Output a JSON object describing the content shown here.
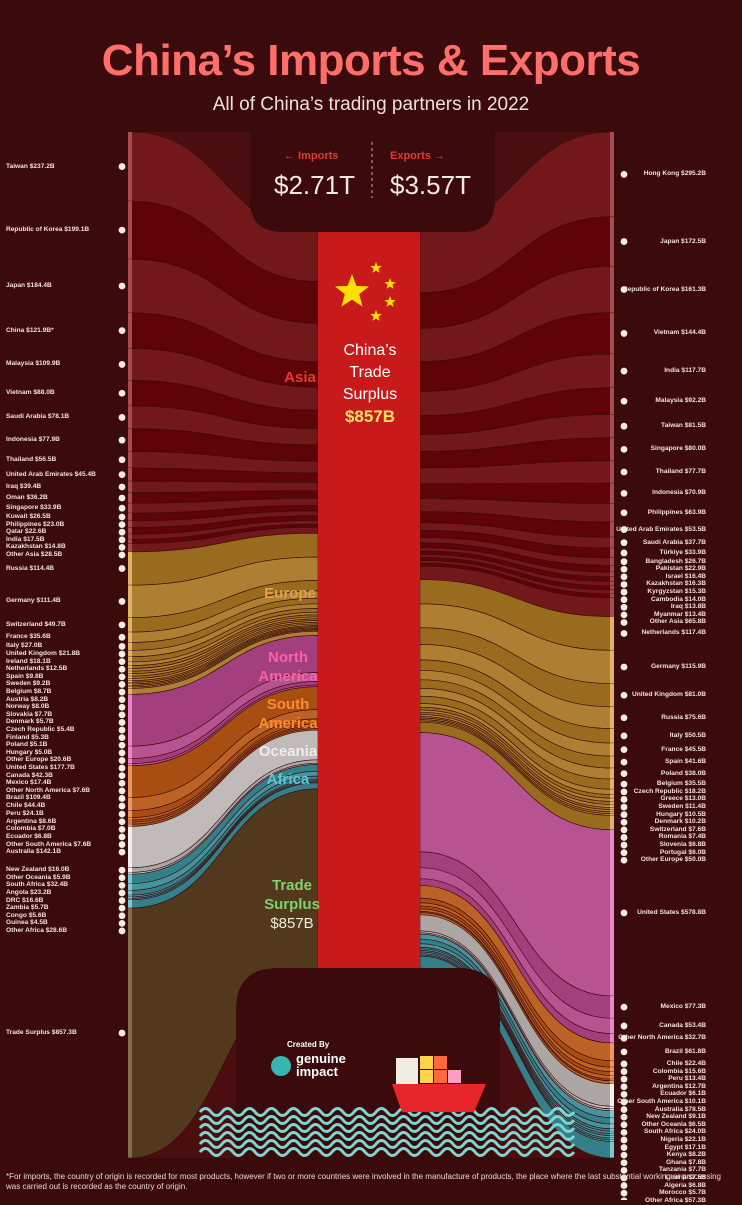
{
  "header": {
    "title": "China’s Imports & Exports",
    "subtitle": "All of China’s trading partners in 2022"
  },
  "totals": {
    "imports_label": "← Imports",
    "imports_value": "$2.71T",
    "exports_label": "Exports →",
    "exports_value": "$3.57T"
  },
  "center": {
    "line1": "China’s",
    "line2": "Trade",
    "line3": "Surplus",
    "value": "$857B"
  },
  "regions": {
    "asia": "Asia",
    "europe": "Europe",
    "north_america_1": "North",
    "north_america_2": "America",
    "south_america_1": "South",
    "south_america_2": "America",
    "oceania": "Oceania",
    "africa": "Africa",
    "trade_surplus_1": "Trade",
    "trade_surplus_2": "Surplus",
    "trade_surplus_value": "$857B"
  },
  "colors": {
    "background": "#3a0a0c",
    "asia": "#6a0f12",
    "europe": "#a4772a",
    "north_america": "#b04b8a",
    "south_america": "#b45a1f",
    "oceania": "#b8b2b0",
    "africa": "#3f8c96",
    "trade_surplus": "#4a3015",
    "china_bar": "#c81a1a",
    "title": "#ff6f6a"
  },
  "branding": {
    "created_by": "Created By",
    "brand_line1": "genuine",
    "brand_line2": "impact",
    "logo_icon": "genuine-impact-logo"
  },
  "footnote": "*For imports, the country of origin is recorded for most products, however if two or more countries were involved in the manufacture of products, the place where the last substantial working or processing was carried out is recorded as the country of origin.",
  "chart_data": {
    "type": "sankey",
    "title": "China’s Imports & Exports",
    "subtitle": "All of China’s trading partners in 2022",
    "imports_total": "$2.71T",
    "exports_total": "$3.57T",
    "trade_surplus": "$857B",
    "imports": [
      {
        "label": "Taiwan $237.2B",
        "region": "asia",
        "value": 237.2
      },
      {
        "label": "Republic of Korea $199.1B",
        "region": "asia",
        "value": 199.1
      },
      {
        "label": "Japan $184.4B",
        "region": "asia",
        "value": 184.4
      },
      {
        "label": "China $121.9B*",
        "region": "asia",
        "value": 121.9
      },
      {
        "label": "Malaysia $109.9B",
        "region": "asia",
        "value": 109.9
      },
      {
        "label": "Vietnam $88.0B",
        "region": "asia",
        "value": 88.0
      },
      {
        "label": "Saudi Arabia $78.1B",
        "region": "asia",
        "value": 78.1
      },
      {
        "label": "Indonesia $77.9B",
        "region": "asia",
        "value": 77.9
      },
      {
        "label": "Thailand $56.5B",
        "region": "asia",
        "value": 56.5
      },
      {
        "label": "United Arab Emirates $45.4B",
        "region": "asia",
        "value": 45.4
      },
      {
        "label": "Iraq $39.4B",
        "region": "asia",
        "value": 39.4
      },
      {
        "label": "Oman $36.2B",
        "region": "asia",
        "value": 36.2
      },
      {
        "label": "Singapore $33.9B",
        "region": "asia",
        "value": 33.9
      },
      {
        "label": "Kuwait $26.5B",
        "region": "asia",
        "value": 26.5
      },
      {
        "label": "Philippines $23.0B",
        "region": "asia",
        "value": 23.0
      },
      {
        "label": "Qatar $22.6B",
        "region": "asia",
        "value": 22.6
      },
      {
        "label": "India $17.5B",
        "region": "asia",
        "value": 17.5
      },
      {
        "label": "Kazakhstan $14.8B",
        "region": "asia",
        "value": 14.8
      },
      {
        "label": "Other Asia $28.5B",
        "region": "asia",
        "value": 28.5
      },
      {
        "label": "Russia $114.4B",
        "region": "europe",
        "value": 114.4
      },
      {
        "label": "Germany $111.4B",
        "region": "europe",
        "value": 111.4
      },
      {
        "label": "Switzerland $49.7B",
        "region": "europe",
        "value": 49.7
      },
      {
        "label": "France $35.6B",
        "region": "europe",
        "value": 35.6
      },
      {
        "label": "Italy $27.0B",
        "region": "europe",
        "value": 27.0
      },
      {
        "label": "United Kingdom $21.8B",
        "region": "europe",
        "value": 21.8
      },
      {
        "label": "Ireland $18.1B",
        "region": "europe",
        "value": 18.1
      },
      {
        "label": "Netherlands $12.5B",
        "region": "europe",
        "value": 12.5
      },
      {
        "label": "Spain $9.8B",
        "region": "europe",
        "value": 9.8
      },
      {
        "label": "Sweden $9.2B",
        "region": "europe",
        "value": 9.2
      },
      {
        "label": "Belgium $8.7B",
        "region": "europe",
        "value": 8.7
      },
      {
        "label": "Austria $8.2B",
        "region": "europe",
        "value": 8.2
      },
      {
        "label": "Norway $8.0B",
        "region": "europe",
        "value": 8.0
      },
      {
        "label": "Slovakia $7.7B",
        "region": "europe",
        "value": 7.7
      },
      {
        "label": "Denmark $5.7B",
        "region": "europe",
        "value": 5.7
      },
      {
        "label": "Czech Republic $5.4B",
        "region": "europe",
        "value": 5.4
      },
      {
        "label": "Finland $5.3B",
        "region": "europe",
        "value": 5.3
      },
      {
        "label": "Poland $5.1B",
        "region": "europe",
        "value": 5.1
      },
      {
        "label": "Hungary $5.0B",
        "region": "europe",
        "value": 5.0
      },
      {
        "label": "Other Europe $20.6B",
        "region": "europe",
        "value": 20.6
      },
      {
        "label": "United States $177.7B",
        "region": "north_america",
        "value": 177.7
      },
      {
        "label": "Canada $42.3B",
        "region": "north_america",
        "value": 42.3
      },
      {
        "label": "Mexico $17.4B",
        "region": "north_america",
        "value": 17.4
      },
      {
        "label": "Other North America $7.6B",
        "region": "north_america",
        "value": 7.6
      },
      {
        "label": "Brazil $109.4B",
        "region": "south_america",
        "value": 109.4
      },
      {
        "label": "Chile $44.4B",
        "region": "south_america",
        "value": 44.4
      },
      {
        "label": "Peru $24.1B",
        "region": "south_america",
        "value": 24.1
      },
      {
        "label": "Argentina $8.6B",
        "region": "south_america",
        "value": 8.6
      },
      {
        "label": "Colombia $7.0B",
        "region": "south_america",
        "value": 7.0
      },
      {
        "label": "Ecuador $6.8B",
        "region": "south_america",
        "value": 6.8
      },
      {
        "label": "Other South America $7.6B",
        "region": "south_america",
        "value": 7.6
      },
      {
        "label": "Australia $142.1B",
        "region": "oceania",
        "value": 142.1
      },
      {
        "label": "New Zealand $16.0B",
        "region": "oceania",
        "value": 16.0
      },
      {
        "label": "Other Oceania $5.9B",
        "region": "oceania",
        "value": 5.9
      },
      {
        "label": "South Africa $32.4B",
        "region": "africa",
        "value": 32.4
      },
      {
        "label": "Angola $23.2B",
        "region": "africa",
        "value": 23.2
      },
      {
        "label": "DRC $16.6B",
        "region": "africa",
        "value": 16.6
      },
      {
        "label": "Zambia $5.7B",
        "region": "africa",
        "value": 5.7
      },
      {
        "label": "Congo $5.6B",
        "region": "africa",
        "value": 5.6
      },
      {
        "label": "Guinea $4.5B",
        "region": "africa",
        "value": 4.5
      },
      {
        "label": "Other Africa $28.6B",
        "region": "africa",
        "value": 28.6
      },
      {
        "label": "Trade Surplus $857.3B",
        "region": "trade_surplus",
        "value": 857.3
      }
    ],
    "exports": [
      {
        "label": "Hong Kong $295.2B",
        "region": "asia",
        "value": 295.2
      },
      {
        "label": "Japan $172.5B",
        "region": "asia",
        "value": 172.5
      },
      {
        "label": "Republic of Korea $161.3B",
        "region": "asia",
        "value": 161.3
      },
      {
        "label": "Vietnam $144.4B",
        "region": "asia",
        "value": 144.4
      },
      {
        "label": "India $117.7B",
        "region": "asia",
        "value": 117.7
      },
      {
        "label": "Malaysia $92.2B",
        "region": "asia",
        "value": 92.2
      },
      {
        "label": "Taiwan $81.5B",
        "region": "asia",
        "value": 81.5
      },
      {
        "label": "Singapore $80.0B",
        "region": "asia",
        "value": 80.0
      },
      {
        "label": "Thailand $77.7B",
        "region": "asia",
        "value": 77.7
      },
      {
        "label": "Indonesia $70.9B",
        "region": "asia",
        "value": 70.9
      },
      {
        "label": "Philippines $63.9B",
        "region": "asia",
        "value": 63.9
      },
      {
        "label": "United Arab Emirates $53.5B",
        "region": "asia",
        "value": 53.5
      },
      {
        "label": "Saudi Arabia $37.7B",
        "region": "asia",
        "value": 37.7
      },
      {
        "label": "Türkiye $33.9B",
        "region": "asia",
        "value": 33.9
      },
      {
        "label": "Bangladesh $26.7B",
        "region": "asia",
        "value": 26.7
      },
      {
        "label": "Pakistan $22.9B",
        "region": "asia",
        "value": 22.9
      },
      {
        "label": "Israel $16.4B",
        "region": "asia",
        "value": 16.4
      },
      {
        "label": "Kazakhstan $16.3B",
        "region": "asia",
        "value": 16.3
      },
      {
        "label": "Kyrgyzstan $15.3B",
        "region": "asia",
        "value": 15.3
      },
      {
        "label": "Cambodia $14.0B",
        "region": "asia",
        "value": 14.0
      },
      {
        "label": "Iraq $13.8B",
        "region": "asia",
        "value": 13.8
      },
      {
        "label": "Myanmar $13.4B",
        "region": "asia",
        "value": 13.4
      },
      {
        "label": "Other Asia $65.8B",
        "region": "asia",
        "value": 65.8
      },
      {
        "label": "Netherlands $117.4B",
        "region": "europe",
        "value": 117.4
      },
      {
        "label": "Germany $115.9B",
        "region": "europe",
        "value": 115.9
      },
      {
        "label": "United Kingdom $81.0B",
        "region": "europe",
        "value": 81.0
      },
      {
        "label": "Russia $75.6B",
        "region": "europe",
        "value": 75.6
      },
      {
        "label": "Italy $50.5B",
        "region": "europe",
        "value": 50.5
      },
      {
        "label": "France $45.5B",
        "region": "europe",
        "value": 45.5
      },
      {
        "label": "Spain $41.6B",
        "region": "europe",
        "value": 41.6
      },
      {
        "label": "Poland $38.0B",
        "region": "europe",
        "value": 38.0
      },
      {
        "label": "Belgium $35.5B",
        "region": "europe",
        "value": 35.5
      },
      {
        "label": "Czech Republic $18.2B",
        "region": "europe",
        "value": 18.2
      },
      {
        "label": "Greece $13.0B",
        "region": "europe",
        "value": 13.0
      },
      {
        "label": "Sweden $11.4B",
        "region": "europe",
        "value": 11.4
      },
      {
        "label": "Hungary $10.5B",
        "region": "europe",
        "value": 10.5
      },
      {
        "label": "Denmark $10.2B",
        "region": "europe",
        "value": 10.2
      },
      {
        "label": "Switzerland $7.6B",
        "region": "europe",
        "value": 7.6
      },
      {
        "label": "Romania $7.4B",
        "region": "europe",
        "value": 7.4
      },
      {
        "label": "Slovenia $6.8B",
        "region": "europe",
        "value": 6.8
      },
      {
        "label": "Portugal $6.0B",
        "region": "europe",
        "value": 6.0
      },
      {
        "label": "Other Europe $50.0B",
        "region": "europe",
        "value": 50.0
      },
      {
        "label": "United States $578.8B",
        "region": "north_america",
        "value": 578.8
      },
      {
        "label": "Mexico $77.3B",
        "region": "north_america",
        "value": 77.3
      },
      {
        "label": "Canada $53.4B",
        "region": "north_america",
        "value": 53.4
      },
      {
        "label": "Other North America $32.7B",
        "region": "north_america",
        "value": 32.7
      },
      {
        "label": "Brazil $61.8B",
        "region": "south_america",
        "value": 61.8
      },
      {
        "label": "Chile $22.4B",
        "region": "south_america",
        "value": 22.4
      },
      {
        "label": "Colombia $15.6B",
        "region": "south_america",
        "value": 15.6
      },
      {
        "label": "Peru $13.4B",
        "region": "south_america",
        "value": 13.4
      },
      {
        "label": "Argentina $12.7B",
        "region": "south_america",
        "value": 12.7
      },
      {
        "label": "Ecuador $6.1B",
        "region": "south_america",
        "value": 6.1
      },
      {
        "label": "Other South America $10.1B",
        "region": "south_america",
        "value": 10.1
      },
      {
        "label": "Australia $78.5B",
        "region": "oceania",
        "value": 78.5
      },
      {
        "label": "New Zealand $9.1B",
        "region": "oceania",
        "value": 9.1
      },
      {
        "label": "Other Oceania $6.5B",
        "region": "oceania",
        "value": 6.5
      },
      {
        "label": "South Africa $24.0B",
        "region": "africa",
        "value": 24.0
      },
      {
        "label": "Nigeria $22.1B",
        "region": "africa",
        "value": 22.1
      },
      {
        "label": "Egypt $17.1B",
        "region": "africa",
        "value": 17.1
      },
      {
        "label": "Kenya $8.2B",
        "region": "africa",
        "value": 8.2
      },
      {
        "label": "Ghana $7.8B",
        "region": "africa",
        "value": 7.8
      },
      {
        "label": "Tanzania $7.7B",
        "region": "africa",
        "value": 7.7
      },
      {
        "label": "Liberia $7.5B",
        "region": "africa",
        "value": 7.5
      },
      {
        "label": "Algeria $6.8B",
        "region": "africa",
        "value": 6.8
      },
      {
        "label": "Morocco $5.7B",
        "region": "africa",
        "value": 5.7
      },
      {
        "label": "Other Africa $57.3B",
        "region": "africa",
        "value": 57.3
      }
    ]
  }
}
